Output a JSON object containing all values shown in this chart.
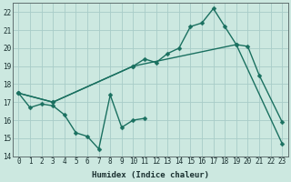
{
  "xlabel": "Humidex (Indice chaleur)",
  "bg_color": "#cce8e0",
  "grid_color": "#a8ccc8",
  "line_color": "#1a7060",
  "xlim": [
    -0.5,
    23.5
  ],
  "ylim": [
    14,
    22.5
  ],
  "xticks": [
    0,
    1,
    2,
    3,
    4,
    5,
    6,
    7,
    8,
    9,
    10,
    11,
    12,
    13,
    14,
    15,
    16,
    17,
    18,
    19,
    20,
    21,
    22,
    23
  ],
  "yticks": [
    14,
    15,
    16,
    17,
    18,
    19,
    20,
    21,
    22
  ],
  "line_width": 1.0,
  "marker_size": 2.5,
  "series": [
    {
      "x": [
        0,
        1,
        2,
        3,
        4,
        5,
        6,
        7,
        8,
        9,
        10,
        11
      ],
      "y": [
        17.5,
        16.7,
        16.9,
        16.8,
        16.3,
        15.3,
        15.1,
        14.4,
        17.4,
        15.6,
        16.0,
        16.1
      ]
    },
    {
      "x": [
        0,
        3,
        10,
        11,
        12,
        13,
        14,
        15,
        16,
        17,
        18,
        19,
        20,
        21,
        23
      ],
      "y": [
        17.5,
        17.0,
        19.0,
        19.4,
        19.2,
        19.7,
        20.0,
        21.2,
        21.4,
        22.2,
        21.2,
        20.2,
        20.1,
        18.5,
        15.9
      ]
    },
    {
      "x": [
        0,
        3,
        10,
        19,
        23
      ],
      "y": [
        17.5,
        17.0,
        19.0,
        20.2,
        14.7
      ]
    }
  ]
}
